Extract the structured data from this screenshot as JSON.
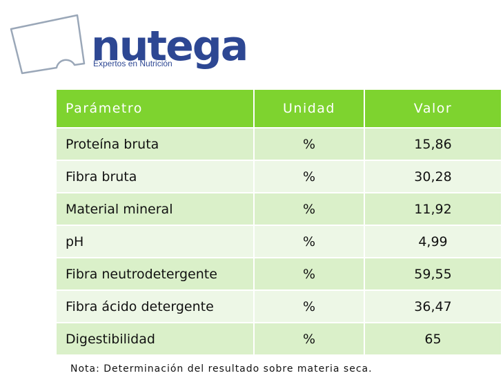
{
  "logo": {
    "brand": "nutega",
    "tagline": "Expertos en Nutrición",
    "color": "#2d4793"
  },
  "table": {
    "headers": [
      "Parámetro",
      "Unidad",
      "Valor"
    ],
    "rows": [
      [
        "Proteína bruta",
        "%",
        "15,86"
      ],
      [
        "Fibra bruta",
        "%",
        "30,28"
      ],
      [
        "Material mineral",
        "%",
        "11,92"
      ],
      [
        "pH",
        "%",
        "4,99"
      ],
      [
        "Fibra neutrodetergente",
        "%",
        "59,55"
      ],
      [
        "Fibra ácido detergente",
        "%",
        "36,47"
      ],
      [
        "Digestibilidad",
        "%",
        "65"
      ]
    ],
    "header_color": "#7ed32f",
    "row_colors": [
      "#daf0c9",
      "#edf7e6"
    ]
  },
  "note": "Nota: Determinación del resultado sobre materia seca."
}
